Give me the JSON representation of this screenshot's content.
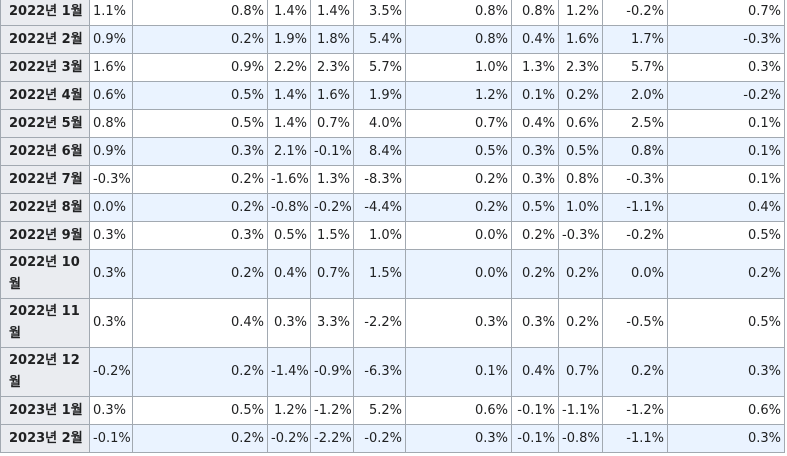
{
  "table": {
    "rows": [
      {
        "label": "2022년 1월",
        "cells": [
          "1.1%",
          "0.8%",
          "1.4%",
          "1.4%",
          "3.5%",
          "0.8%",
          "0.8%",
          "1.2%",
          "-0.2%",
          "0.7%"
        ]
      },
      {
        "label": "2022년 2월",
        "cells": [
          "0.9%",
          "0.2%",
          "1.9%",
          "1.8%",
          "5.4%",
          "0.8%",
          "0.4%",
          "1.6%",
          "1.7%",
          "-0.3%"
        ]
      },
      {
        "label": "2022년 3월",
        "cells": [
          "1.6%",
          "0.9%",
          "2.2%",
          "2.3%",
          "5.7%",
          "1.0%",
          "1.3%",
          "2.3%",
          "5.7%",
          "0.3%"
        ]
      },
      {
        "label": "2022년 4월",
        "cells": [
          "0.6%",
          "0.5%",
          "1.4%",
          "1.6%",
          "1.9%",
          "1.2%",
          "0.1%",
          "0.2%",
          "2.0%",
          "-0.2%"
        ]
      },
      {
        "label": "2022년 5월",
        "cells": [
          "0.8%",
          "0.5%",
          "1.4%",
          "0.7%",
          "4.0%",
          "0.7%",
          "0.4%",
          "0.6%",
          "2.5%",
          "0.1%"
        ]
      },
      {
        "label": "2022년 6월",
        "cells": [
          "0.9%",
          "0.3%",
          "2.1%",
          "-0.1%",
          "8.4%",
          "0.5%",
          "0.3%",
          "0.5%",
          "0.8%",
          "0.1%"
        ]
      },
      {
        "label": "2022년 7월",
        "cells": [
          "-0.3%",
          "0.2%",
          "-1.6%",
          "1.3%",
          "-8.3%",
          "0.2%",
          "0.3%",
          "0.8%",
          "-0.3%",
          "0.1%"
        ]
      },
      {
        "label": "2022년 8월",
        "cells": [
          "0.0%",
          "0.2%",
          "-0.8%",
          "-0.2%",
          "-4.4%",
          "0.2%",
          "0.5%",
          "1.0%",
          "-1.1%",
          "0.4%"
        ]
      },
      {
        "label": "2022년 9월",
        "cells": [
          "0.3%",
          "0.3%",
          "0.5%",
          "1.5%",
          "1.0%",
          "0.0%",
          "0.2%",
          "-0.3%",
          "-0.2%",
          "0.5%"
        ]
      },
      {
        "label": "2022년 10월",
        "cells": [
          "0.3%",
          "0.2%",
          "0.4%",
          "0.7%",
          "1.5%",
          "0.0%",
          "0.2%",
          "0.2%",
          "0.0%",
          "0.2%"
        ]
      },
      {
        "label": "2022년 11월",
        "cells": [
          "0.3%",
          "0.4%",
          "0.3%",
          "3.3%",
          "-2.2%",
          "0.3%",
          "0.3%",
          "0.2%",
          "-0.5%",
          "0.5%"
        ]
      },
      {
        "label": "2022년 12월",
        "cells": [
          "-0.2%",
          "0.2%",
          "-1.4%",
          "-0.9%",
          "-6.3%",
          "0.1%",
          "0.4%",
          "0.7%",
          "0.2%",
          "0.3%"
        ]
      },
      {
        "label": "2023년 1월",
        "cells": [
          "0.3%",
          "0.5%",
          "1.2%",
          "-1.2%",
          "5.2%",
          "0.6%",
          "-0.1%",
          "-1.1%",
          "-1.2%",
          "0.6%"
        ]
      },
      {
        "label": "2023년 2월",
        "cells": [
          "-0.1%",
          "0.2%",
          "-0.2%",
          "-2.2%",
          "-0.2%",
          "0.3%",
          "-0.1%",
          "-0.8%",
          "-1.1%",
          "0.3%"
        ]
      }
    ]
  }
}
